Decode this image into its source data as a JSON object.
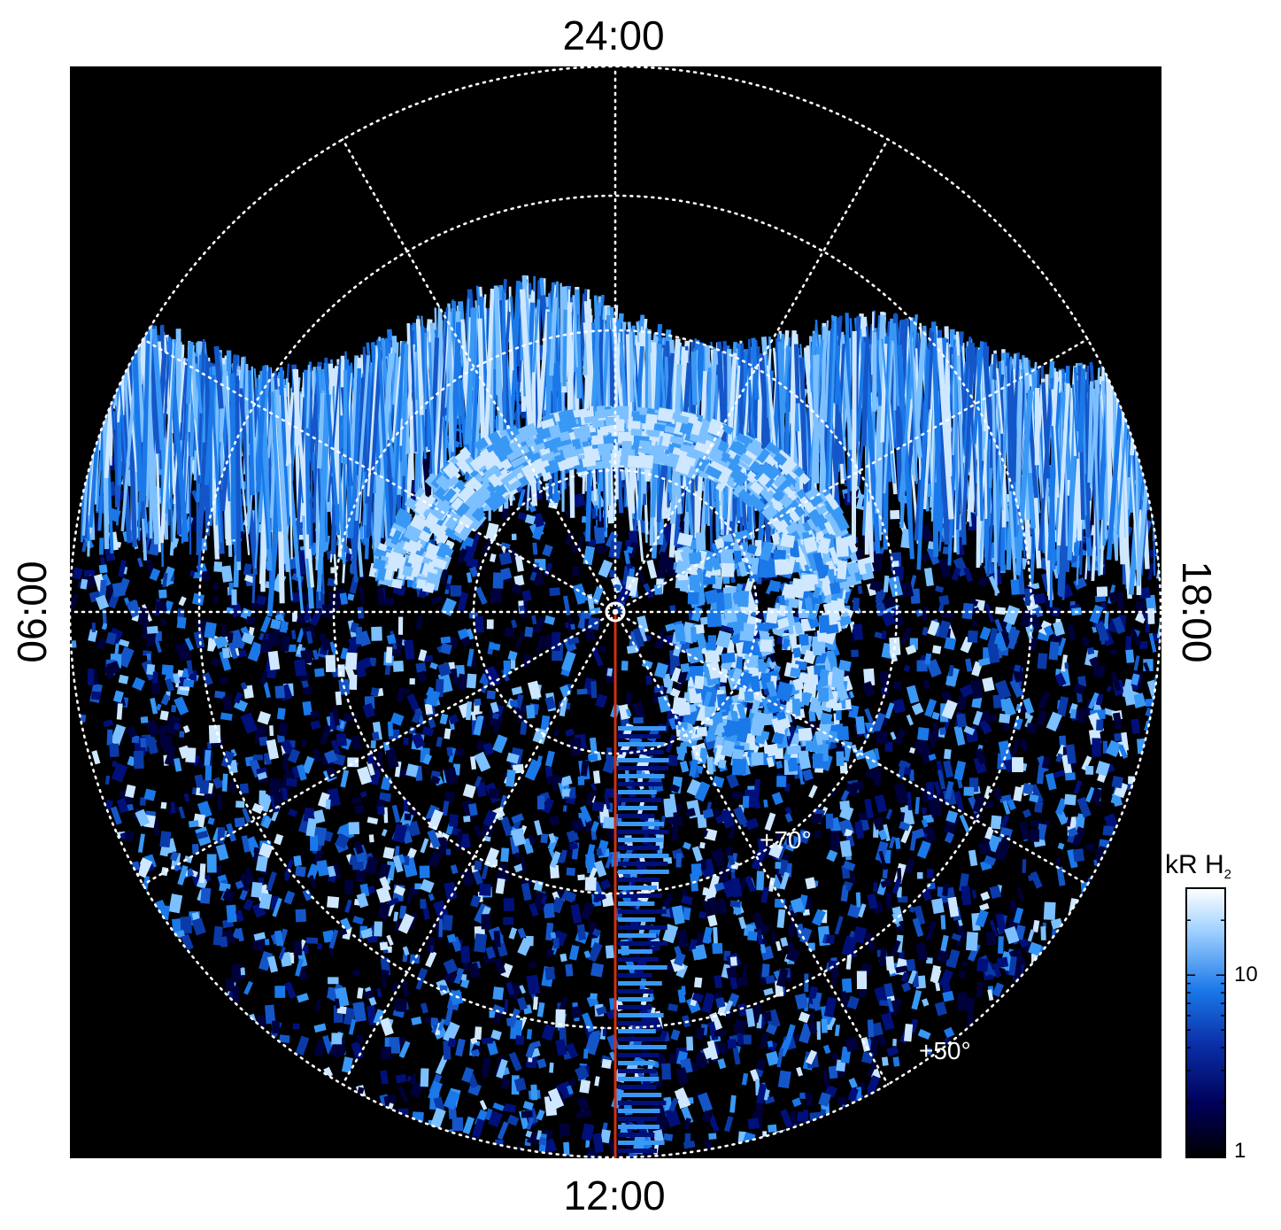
{
  "labels": {
    "top": "24:00",
    "bottom": "12:00",
    "left": "06:00",
    "right": "18:00",
    "lat_inner": "+70°",
    "lat_outer": "+50°"
  },
  "colorbar": {
    "title_main": "kR H",
    "title_sub": "2",
    "tick_high": "10",
    "tick_low": "1",
    "scale": "log",
    "range": [
      1,
      30
    ],
    "colors": [
      "#000000",
      "#00005a",
      "#0a2fa8",
      "#1a78e8",
      "#9fd0ff",
      "#ffffff"
    ]
  },
  "colors": {
    "background": "#000000",
    "grid": "#ffffff",
    "meridian_line": "#d03010",
    "emission_bright": "#9fd0ff",
    "emission_mid": "#1a78e8",
    "emission_dark": "#00005a"
  }
}
